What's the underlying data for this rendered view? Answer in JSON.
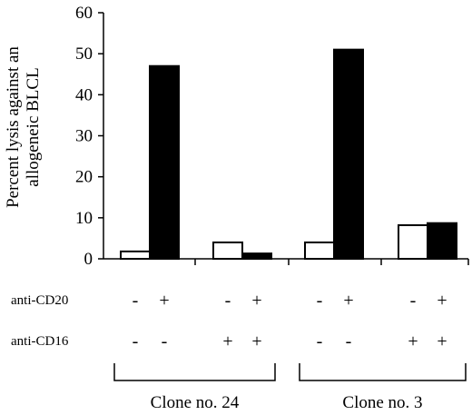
{
  "chart_data": {
    "type": "bar",
    "ylabel_lines": [
      "Percent lysis against an",
      "allogeneic BLCL"
    ],
    "ylim": [
      0,
      60
    ],
    "yticks": [
      "0",
      "10",
      "20",
      "30",
      "40",
      "50",
      "60"
    ],
    "categories": [
      {
        "anti_cd20": "-",
        "anti_cd16": "-",
        "fill": "white",
        "value": 1.8
      },
      {
        "anti_cd20": "+",
        "anti_cd16": "-",
        "fill": "black",
        "value": 47
      },
      {
        "anti_cd20": "-",
        "anti_cd16": "+",
        "fill": "white",
        "value": 4
      },
      {
        "anti_cd20": "+",
        "anti_cd16": "+",
        "fill": "black",
        "value": 1.3
      },
      {
        "anti_cd20": "-",
        "anti_cd16": "-",
        "fill": "white",
        "value": 4
      },
      {
        "anti_cd20": "+",
        "anti_cd16": "-",
        "fill": "black",
        "value": 51
      },
      {
        "anti_cd20": "-",
        "anti_cd16": "+",
        "fill": "white",
        "value": 8.2
      },
      {
        "anti_cd20": "+",
        "anti_cd16": "+",
        "fill": "black",
        "value": 8.7
      }
    ],
    "row_labels": {
      "anti_cd20": "anti-CD20",
      "anti_cd16": "anti-CD16"
    },
    "groups": [
      {
        "label": "Clone no. 24",
        "members": [
          0,
          1,
          2,
          3
        ]
      },
      {
        "label": "Clone no. 3",
        "members": [
          4,
          5,
          6,
          7
        ]
      }
    ],
    "grid": false,
    "legend": "none"
  }
}
